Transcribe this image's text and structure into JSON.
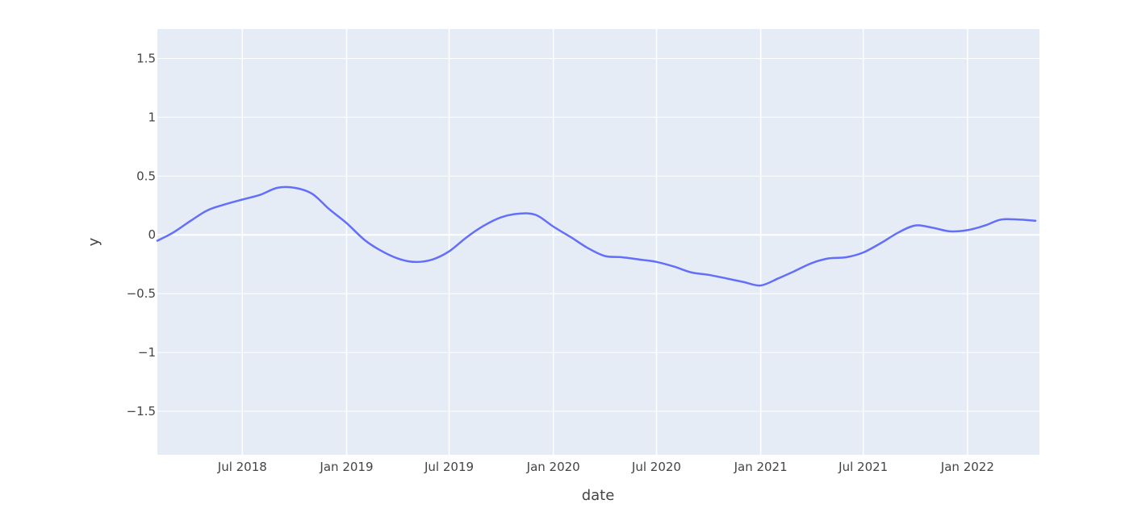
{
  "chart_data": {
    "type": "line",
    "xlabel": "date",
    "ylabel": "y",
    "xlim": [
      "2018-02-01",
      "2022-05-08"
    ],
    "ylim": [
      -1.87,
      1.75
    ],
    "x_ticks": [
      {
        "date": "2018-07-01",
        "label": "Jul 2018"
      },
      {
        "date": "2019-01-01",
        "label": "Jan 2019"
      },
      {
        "date": "2019-07-01",
        "label": "Jul 2019"
      },
      {
        "date": "2020-01-01",
        "label": "Jan 2020"
      },
      {
        "date": "2020-07-01",
        "label": "Jul 2020"
      },
      {
        "date": "2021-01-01",
        "label": "Jan 2021"
      },
      {
        "date": "2021-07-01",
        "label": "Jul 2021"
      },
      {
        "date": "2022-01-01",
        "label": "Jan 2022"
      }
    ],
    "y_ticks": [
      {
        "value": 1.5,
        "label": "1.5"
      },
      {
        "value": 1,
        "label": "1"
      },
      {
        "value": 0.5,
        "label": "0.5"
      },
      {
        "value": 0,
        "label": "0"
      },
      {
        "value": -0.5,
        "label": "−0.5"
      },
      {
        "value": -1,
        "label": "−1"
      },
      {
        "value": -1.5,
        "label": "−1.5"
      }
    ],
    "grid": true,
    "background": "#e5ecf6",
    "series": [
      {
        "color": "#636efa",
        "points": [
          [
            "2018-02-01",
            -0.05
          ],
          [
            "2018-03-01",
            0.02
          ],
          [
            "2018-04-01",
            0.12
          ],
          [
            "2018-05-01",
            0.21
          ],
          [
            "2018-06-01",
            0.26
          ],
          [
            "2018-07-01",
            0.3
          ],
          [
            "2018-08-01",
            0.34
          ],
          [
            "2018-09-01",
            0.4
          ],
          [
            "2018-10-01",
            0.4
          ],
          [
            "2018-11-01",
            0.35
          ],
          [
            "2018-12-01",
            0.22
          ],
          [
            "2019-01-01",
            0.1
          ],
          [
            "2019-02-01",
            -0.04
          ],
          [
            "2019-03-01",
            -0.13
          ],
          [
            "2019-04-01",
            -0.2
          ],
          [
            "2019-05-01",
            -0.23
          ],
          [
            "2019-06-01",
            -0.21
          ],
          [
            "2019-07-01",
            -0.14
          ],
          [
            "2019-08-01",
            -0.02
          ],
          [
            "2019-09-01",
            0.08
          ],
          [
            "2019-10-01",
            0.15
          ],
          [
            "2019-11-01",
            0.18
          ],
          [
            "2019-12-01",
            0.17
          ],
          [
            "2020-01-01",
            0.07
          ],
          [
            "2020-02-01",
            -0.02
          ],
          [
            "2020-03-01",
            -0.11
          ],
          [
            "2020-04-01",
            -0.18
          ],
          [
            "2020-05-01",
            -0.19
          ],
          [
            "2020-06-01",
            -0.21
          ],
          [
            "2020-07-01",
            -0.23
          ],
          [
            "2020-08-01",
            -0.27
          ],
          [
            "2020-09-01",
            -0.32
          ],
          [
            "2020-10-01",
            -0.34
          ],
          [
            "2020-11-01",
            -0.37
          ],
          [
            "2020-12-01",
            -0.4
          ],
          [
            "2021-01-01",
            -0.43
          ],
          [
            "2021-02-01",
            -0.37
          ],
          [
            "2021-03-01",
            -0.31
          ],
          [
            "2021-04-01",
            -0.24
          ],
          [
            "2021-05-01",
            -0.2
          ],
          [
            "2021-06-01",
            -0.19
          ],
          [
            "2021-07-01",
            -0.15
          ],
          [
            "2021-08-01",
            -0.07
          ],
          [
            "2021-09-01",
            0.02
          ],
          [
            "2021-10-01",
            0.08
          ],
          [
            "2021-11-01",
            0.06
          ],
          [
            "2021-12-01",
            0.03
          ],
          [
            "2022-01-01",
            0.04
          ],
          [
            "2022-02-01",
            0.08
          ],
          [
            "2022-03-01",
            0.13
          ],
          [
            "2022-04-01",
            0.13
          ],
          [
            "2022-05-01",
            0.12
          ]
        ]
      }
    ]
  }
}
